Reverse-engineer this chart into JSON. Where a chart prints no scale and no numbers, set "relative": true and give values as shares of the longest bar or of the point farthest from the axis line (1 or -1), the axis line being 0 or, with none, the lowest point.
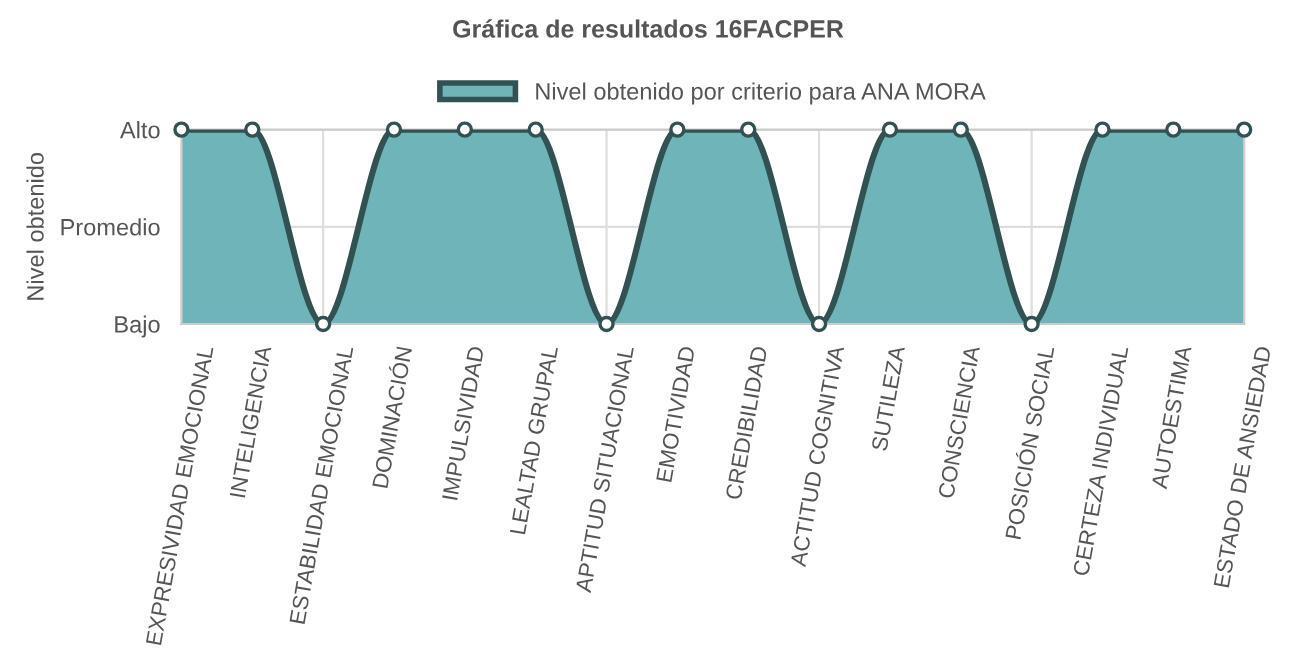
{
  "chart_data": {
    "type": "area",
    "title": "Gráfica de resultados 16FACPER",
    "ylabel": "Nivel obtenido",
    "categories": [
      "EXPRESIVIDAD EMOCIONAL",
      "INTELIGENCIA",
      "ESTABILIDAD EMOCIONAL",
      "DOMINACIÓN",
      "IMPULSIVIDAD",
      "LEALTAD GRUPAL",
      "APTITUD SITUACIONAL",
      "EMOTIVIDAD",
      "CREDIBILIDAD",
      "ACTITUD COGNITIVA",
      "SUTILEZA",
      "CONSCIENCIA",
      "POSICIÓN SOCIAL",
      "CERTEZA INDIVIDUAL",
      "AUTOESTIMA",
      "ESTADO DE ANSIEDAD"
    ],
    "series": [
      {
        "name": "Nivel obtenido por criterio para ANA MORA",
        "color": "#6fb4b8",
        "values": [
          1,
          1,
          0,
          1,
          1,
          1,
          0,
          1,
          1,
          0,
          1,
          1,
          0,
          1,
          1,
          1
        ]
      }
    ],
    "relative": true,
    "annotations": [
      "Alto",
      "Promedio",
      "Bajo"
    ],
    "grid": true,
    "legend": "top",
    "marker": "circle",
    "line_style": "solid"
  }
}
